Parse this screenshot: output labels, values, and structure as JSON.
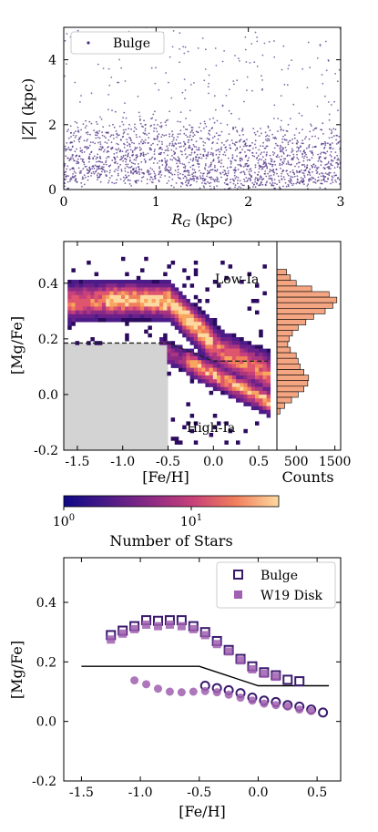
{
  "chart_data": [
    {
      "type": "scatter",
      "legend": [
        "Bulge"
      ],
      "legend_position": "top-left",
      "xlabel": "R_G (kpc)",
      "ylabel": "|Z| (kpc)",
      "xlim": [
        0,
        3
      ],
      "ylim": [
        0,
        5
      ],
      "xticks": [
        "0",
        "1",
        "2",
        "3"
      ],
      "yticks": [
        "0",
        "2",
        "4"
      ],
      "point_color": "#4b2e83",
      "series": [
        {
          "name": "Bulge",
          "description_of_bands": [
            {
              "z_center": 0.35,
              "z_spread": 0.15
            },
            {
              "z_center": 0.7,
              "z_spread": 0.2
            },
            {
              "z_center": 1.1,
              "z_spread": 0.25
            },
            {
              "z_center": 1.6,
              "z_spread": 0.3
            }
          ]
        }
      ]
    },
    {
      "type": "heatmap",
      "xlabel": "[Fe/H]",
      "ylabel": "[Mg/Fe]",
      "xlim": [
        -1.65,
        0.7
      ],
      "ylim": [
        -0.2,
        0.55
      ],
      "xticks": [
        "-1.5",
        "-1.0",
        "-0.5",
        "0.0",
        "0.5"
      ],
      "yticks": [
        "-0.2",
        "0.0",
        "0.2",
        "0.4"
      ],
      "labels": {
        "upper": "Low-Ia",
        "lower": "High-Ia"
      },
      "division_line": {
        "x": [
          -1.65,
          -0.5,
          0.0,
          0.6
        ],
        "y": [
          0.185,
          0.185,
          0.12,
          0.12
        ]
      },
      "excluded_region": {
        "x": [
          -1.65,
          -0.5
        ],
        "y": [
          -0.2,
          0.185
        ],
        "color": "#d3d3d3"
      },
      "colorbar": {
        "label": "Number of Stars",
        "ticks": [
          "10",
          "10"
        ],
        "tick_superscripts": [
          "0",
          "1"
        ],
        "scale": "log",
        "range": [
          1,
          50
        ]
      },
      "side_histogram": {
        "xlabel": "Counts",
        "xticks": [
          "500",
          "1500"
        ],
        "color": "#f4a582",
        "bins": [
          {
            "y": 0.44,
            "count": 250
          },
          {
            "y": 0.42,
            "count": 350
          },
          {
            "y": 0.4,
            "count": 500
          },
          {
            "y": 0.38,
            "count": 900
          },
          {
            "y": 0.36,
            "count": 1350
          },
          {
            "y": 0.34,
            "count": 1550
          },
          {
            "y": 0.32,
            "count": 1450
          },
          {
            "y": 0.3,
            "count": 1250
          },
          {
            "y": 0.28,
            "count": 950
          },
          {
            "y": 0.26,
            "count": 750
          },
          {
            "y": 0.24,
            "count": 550
          },
          {
            "y": 0.22,
            "count": 400
          },
          {
            "y": 0.2,
            "count": 320
          },
          {
            "y": 0.18,
            "count": 280
          },
          {
            "y": 0.16,
            "count": 350
          },
          {
            "y": 0.14,
            "count": 500
          },
          {
            "y": 0.12,
            "count": 550
          },
          {
            "y": 0.1,
            "count": 600
          },
          {
            "y": 0.08,
            "count": 700
          },
          {
            "y": 0.06,
            "count": 820
          },
          {
            "y": 0.04,
            "count": 800
          },
          {
            "y": 0.02,
            "count": 700
          },
          {
            "y": 0.0,
            "count": 550
          },
          {
            "y": -0.02,
            "count": 380
          },
          {
            "y": -0.04,
            "count": 200
          },
          {
            "y": -0.06,
            "count": 80
          }
        ]
      }
    },
    {
      "type": "scatter",
      "xlabel": "[Fe/H]",
      "ylabel": "[Mg/Fe]",
      "xlim": [
        -1.65,
        0.7
      ],
      "ylim": [
        -0.2,
        0.55
      ],
      "xticks": [
        "-1.5",
        "-1.0",
        "-0.5",
        "0.0",
        "0.5"
      ],
      "yticks": [
        "-0.2",
        "0.0",
        "0.2",
        "0.4"
      ],
      "legend_position": "top-right",
      "division_line": {
        "x": [
          -1.5,
          -0.5,
          0.0,
          0.6
        ],
        "y": [
          0.185,
          0.185,
          0.12,
          0.12
        ]
      },
      "series": [
        {
          "name": "Bulge",
          "marker": "open-square",
          "color": "#3b1a6e",
          "points": [
            {
              "x": -1.25,
              "y": 0.29
            },
            {
              "x": -1.15,
              "y": 0.305
            },
            {
              "x": -1.05,
              "y": 0.32
            },
            {
              "x": -0.95,
              "y": 0.34
            },
            {
              "x": -0.85,
              "y": 0.338
            },
            {
              "x": -0.75,
              "y": 0.34
            },
            {
              "x": -0.65,
              "y": 0.34
            },
            {
              "x": -0.55,
              "y": 0.32
            },
            {
              "x": -0.45,
              "y": 0.3
            },
            {
              "x": -0.35,
              "y": 0.27
            },
            {
              "x": -0.25,
              "y": 0.24
            },
            {
              "x": -0.15,
              "y": 0.21
            },
            {
              "x": -0.05,
              "y": 0.185
            },
            {
              "x": 0.05,
              "y": 0.165
            },
            {
              "x": 0.15,
              "y": 0.155
            },
            {
              "x": 0.25,
              "y": 0.14
            },
            {
              "x": 0.35,
              "y": 0.135
            }
          ]
        },
        {
          "name": "Bulge",
          "marker": "open-circle",
          "color": "#3b1a6e",
          "points": [
            {
              "x": -0.45,
              "y": 0.12
            },
            {
              "x": -0.35,
              "y": 0.112
            },
            {
              "x": -0.25,
              "y": 0.105
            },
            {
              "x": -0.15,
              "y": 0.095
            },
            {
              "x": -0.05,
              "y": 0.08
            },
            {
              "x": 0.05,
              "y": 0.07
            },
            {
              "x": 0.15,
              "y": 0.065
            },
            {
              "x": 0.25,
              "y": 0.055
            },
            {
              "x": 0.35,
              "y": 0.05
            },
            {
              "x": 0.45,
              "y": 0.04
            },
            {
              "x": 0.55,
              "y": 0.03
            }
          ]
        },
        {
          "name": "W19 Disk",
          "marker": "filled-square",
          "color": "#a05fb0",
          "points": [
            {
              "x": -1.25,
              "y": 0.275
            },
            {
              "x": -1.15,
              "y": 0.295
            },
            {
              "x": -1.05,
              "y": 0.31
            },
            {
              "x": -0.95,
              "y": 0.325
            },
            {
              "x": -0.85,
              "y": 0.32
            },
            {
              "x": -0.75,
              "y": 0.325
            },
            {
              "x": -0.65,
              "y": 0.32
            },
            {
              "x": -0.55,
              "y": 0.31
            },
            {
              "x": -0.45,
              "y": 0.29
            },
            {
              "x": -0.35,
              "y": 0.26
            },
            {
              "x": -0.25,
              "y": 0.235
            },
            {
              "x": -0.15,
              "y": 0.205
            },
            {
              "x": -0.05,
              "y": 0.175
            },
            {
              "x": 0.05,
              "y": 0.16
            },
            {
              "x": 0.15,
              "y": 0.15
            }
          ]
        },
        {
          "name": "W19 Disk",
          "marker": "filled-circle",
          "color": "#a05fb0",
          "points": [
            {
              "x": -1.05,
              "y": 0.138
            },
            {
              "x": -0.95,
              "y": 0.125
            },
            {
              "x": -0.85,
              "y": 0.11
            },
            {
              "x": -0.75,
              "y": 0.1
            },
            {
              "x": -0.65,
              "y": 0.098
            },
            {
              "x": -0.55,
              "y": 0.1
            },
            {
              "x": -0.45,
              "y": 0.102
            },
            {
              "x": -0.35,
              "y": 0.098
            },
            {
              "x": -0.25,
              "y": 0.09
            },
            {
              "x": -0.15,
              "y": 0.08
            },
            {
              "x": -0.05,
              "y": 0.07
            },
            {
              "x": 0.05,
              "y": 0.06
            },
            {
              "x": 0.15,
              "y": 0.055
            },
            {
              "x": 0.25,
              "y": 0.05
            },
            {
              "x": 0.35,
              "y": 0.04
            },
            {
              "x": 0.45,
              "y": 0.035
            }
          ]
        }
      ]
    }
  ]
}
